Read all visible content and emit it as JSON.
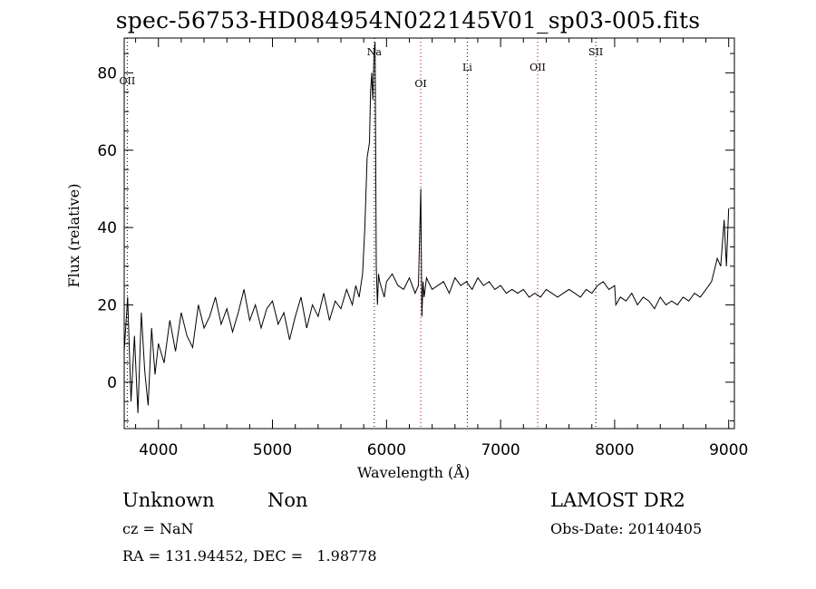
{
  "chart_data": {
    "type": "line",
    "title": "spec-56753-HD084954N022145V01_sp03-005.fits",
    "xlabel": "Wavelength (Å)",
    "ylabel": "Flux (relative)",
    "xlim": [
      3700,
      9050
    ],
    "ylim": [
      -12,
      89
    ],
    "xticks": [
      4000,
      5000,
      6000,
      7000,
      8000,
      9000
    ],
    "yticks": [
      0,
      20,
      40,
      60,
      80
    ],
    "grid": false,
    "series": [
      {
        "x": [
          3700,
          3730,
          3760,
          3790,
          3820,
          3850,
          3880,
          3910,
          3940,
          3970,
          4000,
          4050,
          4100,
          4150,
          4200,
          4250,
          4300,
          4350,
          4400,
          4450,
          4500,
          4550,
          4600,
          4650,
          4700,
          4750,
          4800,
          4850,
          4900,
          4950,
          5000,
          5050,
          5100,
          5150,
          5200,
          5250,
          5300,
          5350,
          5400,
          5450,
          5500,
          5550,
          5600,
          5650,
          5700,
          5730,
          5760,
          5790,
          5810,
          5830,
          5850,
          5860,
          5870,
          5880,
          5890,
          5900,
          5910,
          5920,
          5930,
          5940,
          5960,
          5980,
          6000,
          6050,
          6100,
          6150,
          6200,
          6250,
          6280,
          6300,
          6310,
          6320,
          6330,
          6350,
          6400,
          6450,
          6500,
          6550,
          6600,
          6650,
          6700,
          6750,
          6800,
          6850,
          6900,
          6950,
          7000,
          7050,
          7100,
          7150,
          7200,
          7250,
          7300,
          7350,
          7400,
          7450,
          7500,
          7550,
          7600,
          7650,
          7700,
          7750,
          7800,
          7850,
          7900,
          7950,
          8000,
          8010,
          8050,
          8100,
          8150,
          8200,
          8250,
          8300,
          8350,
          8400,
          8450,
          8500,
          8550,
          8600,
          8650,
          8700,
          8750,
          8800,
          8850,
          8900,
          8930,
          8960,
          8980,
          9000
        ],
        "y": [
          8,
          22,
          -5,
          12,
          -8,
          18,
          3,
          -6,
          14,
          2,
          10,
          5,
          16,
          8,
          18,
          12,
          9,
          20,
          14,
          17,
          22,
          15,
          19,
          13,
          18,
          24,
          16,
          20,
          14,
          19,
          21,
          15,
          18,
          11,
          17,
          22,
          14,
          20,
          17,
          23,
          16,
          21,
          19,
          24,
          20,
          25,
          22,
          28,
          40,
          58,
          62,
          75,
          80,
          73,
          85,
          88,
          30,
          20,
          28,
          26,
          24,
          22,
          26,
          28,
          25,
          24,
          27,
          23,
          25,
          50,
          17,
          26,
          22,
          27,
          24,
          25,
          26,
          23,
          27,
          25,
          26,
          24,
          27,
          25,
          26,
          24,
          25,
          23,
          24,
          23,
          24,
          22,
          23,
          22,
          24,
          23,
          22,
          23,
          24,
          23,
          22,
          24,
          23,
          25,
          26,
          24,
          25,
          20,
          22,
          21,
          23,
          20,
          22,
          21,
          19,
          22,
          20,
          21,
          20,
          22,
          21,
          23,
          22,
          24,
          26,
          32,
          30,
          42,
          30,
          45
        ]
      }
    ],
    "lines": [
      {
        "label": "OII",
        "x": 3727
      },
      {
        "label": "Na",
        "x": 5893
      },
      {
        "label": "OI",
        "x": 6300
      },
      {
        "label": "Li",
        "x": 6708
      },
      {
        "label": "OII",
        "x": 7325
      },
      {
        "label": "SII",
        "x": 7835
      }
    ]
  },
  "info": {
    "class": "Unknown",
    "subclass": "Non",
    "cz": "cz = NaN",
    "coords": "RA = 131.94452, DEC =   1.98778",
    "survey": "LAMOST DR2",
    "obs_date": "Obs-Date: 20140405"
  }
}
